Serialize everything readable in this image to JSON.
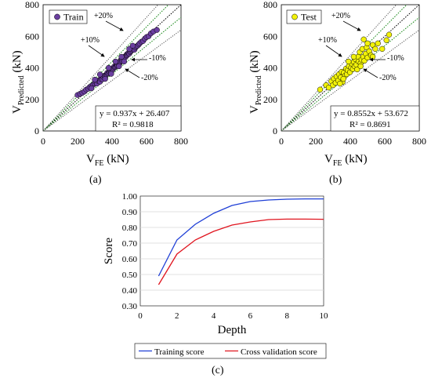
{
  "chart_data": [
    {
      "type": "scatter",
      "panel_label": "(a)",
      "xlabel_main": "V",
      "xlabel_sub": "FE",
      "xlabel_unit": " (kN)",
      "ylabel_main": "V",
      "ylabel_sub": "Predicted",
      "ylabel_unit": " (kN)",
      "xlim": [
        0,
        800
      ],
      "ylim": [
        0,
        800
      ],
      "xticks": [
        "0",
        "200",
        "400",
        "600",
        "800"
      ],
      "yticks": [
        "0",
        "200",
        "400",
        "600",
        "800"
      ],
      "legend": "Train",
      "marker_color": "#6b3fa0",
      "equation": "y = 0.937x + 26.407",
      "r2": "R² = 0.9818",
      "bands": [
        "+20%",
        "+10%",
        "-10%",
        "-20%"
      ],
      "series": [
        {
          "name": "Train",
          "points": [
            [
              200,
              228
            ],
            [
              215,
              235
            ],
            [
              228,
              242
            ],
            [
              240,
              250
            ],
            [
              250,
              262
            ],
            [
              262,
              268
            ],
            [
              270,
              278
            ],
            [
              280,
              285
            ],
            [
              290,
              292
            ],
            [
              298,
              302
            ],
            [
              305,
              310
            ],
            [
              312,
              300
            ],
            [
              318,
              318
            ],
            [
              325,
              322
            ],
            [
              330,
              312
            ],
            [
              335,
              330
            ],
            [
              340,
              338
            ],
            [
              345,
              328
            ],
            [
              350,
              342
            ],
            [
              355,
              350
            ],
            [
              360,
              345
            ],
            [
              365,
              355
            ],
            [
              370,
              360
            ],
            [
              372,
              368
            ],
            [
              378,
              365
            ],
            [
              382,
              372
            ],
            [
              385,
              378
            ],
            [
              390,
              382
            ],
            [
              395,
              375
            ],
            [
              398,
              388
            ],
            [
              400,
              395
            ],
            [
              405,
              392
            ],
            [
              410,
              400
            ],
            [
              412,
              408
            ],
            [
              418,
              405
            ],
            [
              422,
              410
            ],
            [
              425,
              418
            ],
            [
              428,
              422
            ],
            [
              432,
              415
            ],
            [
              435,
              428
            ],
            [
              438,
              432
            ],
            [
              442,
              425
            ],
            [
              445,
              436
            ],
            [
              448,
              440
            ],
            [
              450,
              448
            ],
            [
              455,
              452
            ],
            [
              458,
              445
            ],
            [
              460,
              455
            ],
            [
              465,
              462
            ],
            [
              468,
              458
            ],
            [
              470,
              465
            ],
            [
              475,
              472
            ],
            [
              478,
              468
            ],
            [
              482,
              478
            ],
            [
              485,
              485
            ],
            [
              488,
              480
            ],
            [
              492,
              488
            ],
            [
              495,
              495
            ],
            [
              500,
              490
            ],
            [
              505,
              500
            ],
            [
              510,
              505
            ],
            [
              515,
              512
            ],
            [
              520,
              518
            ],
            [
              525,
              522
            ],
            [
              530,
              515
            ],
            [
              535,
              528
            ],
            [
              540,
              535
            ],
            [
              548,
              540
            ],
            [
              555,
              548
            ],
            [
              560,
              555
            ],
            [
              570,
              565
            ],
            [
              580,
              570
            ],
            [
              590,
              585
            ],
            [
              600,
              595
            ],
            [
              612,
              600
            ],
            [
              625,
              618
            ],
            [
              640,
              630
            ],
            [
              660,
              640
            ],
            [
              330,
              358
            ],
            [
              360,
              330
            ],
            [
              420,
              440
            ],
            [
              440,
              410
            ],
            [
              470,
              440
            ],
            [
              500,
              520
            ],
            [
              380,
              400
            ],
            [
              300,
              325
            ],
            [
              280,
              270
            ],
            [
              520,
              540
            ],
            [
              455,
              470
            ],
            [
              395,
              362
            ]
          ]
        }
      ]
    },
    {
      "type": "scatter",
      "panel_label": "(b)",
      "xlabel_main": "V",
      "xlabel_sub": "FE",
      "xlabel_unit": " (kN)",
      "ylabel_main": "V",
      "ylabel_sub": "Predicted",
      "ylabel_unit": " (kN)",
      "xlim": [
        0,
        800
      ],
      "ylim": [
        0,
        800
      ],
      "xticks": [
        "0",
        "200",
        "400",
        "600",
        "800"
      ],
      "yticks": [
        "0",
        "200",
        "400",
        "600",
        "800"
      ],
      "legend": "Test",
      "marker_color": "#f2f20a",
      "equation": "y = 0.8552x + 53.672",
      "r2": "R² = 0.8691",
      "bands": [
        "+20%",
        "+10%",
        "-10%",
        "-20%"
      ],
      "series": [
        {
          "name": "Test",
          "points": [
            [
              225,
              262
            ],
            [
              260,
              290
            ],
            [
              275,
              275
            ],
            [
              290,
              315
            ],
            [
              300,
              290
            ],
            [
              305,
              332
            ],
            [
              315,
              305
            ],
            [
              320,
              345
            ],
            [
              330,
              320
            ],
            [
              335,
              360
            ],
            [
              345,
              340
            ],
            [
              350,
              375
            ],
            [
              355,
              310
            ],
            [
              362,
              368
            ],
            [
              370,
              350
            ],
            [
              375,
              395
            ],
            [
              380,
              360
            ],
            [
              385,
              385
            ],
            [
              392,
              410
            ],
            [
              398,
              372
            ],
            [
              405,
              400
            ],
            [
              410,
              425
            ],
            [
              415,
              392
            ],
            [
              420,
              438
            ],
            [
              425,
              410
            ],
            [
              430,
              455
            ],
            [
              435,
              420
            ],
            [
              440,
              390
            ],
            [
              445,
              470
            ],
            [
              448,
              440
            ],
            [
              455,
              500
            ],
            [
              460,
              430
            ],
            [
              465,
              452
            ],
            [
              470,
              520
            ],
            [
              475,
              470
            ],
            [
              478,
              580
            ],
            [
              482,
              445
            ],
            [
              490,
              490
            ],
            [
              495,
              530
            ],
            [
              500,
              465
            ],
            [
              510,
              505
            ],
            [
              520,
              480
            ],
            [
              530,
              545
            ],
            [
              545,
              520
            ],
            [
              560,
              555
            ],
            [
              585,
              520
            ],
            [
              610,
              575
            ],
            [
              625,
              610
            ],
            [
              390,
              440
            ],
            [
              360,
              330
            ],
            [
              340,
              300
            ],
            [
              420,
              470
            ],
            [
              460,
              410
            ],
            [
              500,
              555
            ],
            [
              530,
              470
            ]
          ]
        }
      ]
    },
    {
      "type": "line",
      "panel_label": "(c)",
      "xlabel": "Depth",
      "ylabel": "Score",
      "xlim": [
        0,
        10
      ],
      "ylim": [
        0.3,
        1.0
      ],
      "xticks": [
        "0",
        "2",
        "4",
        "6",
        "8",
        "10"
      ],
      "yticks": [
        "0.30",
        "0.40",
        "0.50",
        "0.60",
        "0.70",
        "0.80",
        "0.90",
        "1.00"
      ],
      "x": [
        1,
        2,
        3,
        4,
        5,
        6,
        7,
        8,
        9,
        10
      ],
      "series": [
        {
          "name": "Training score",
          "color": "#1f3fd6",
          "values": [
            0.49,
            0.72,
            0.82,
            0.89,
            0.94,
            0.965,
            0.975,
            0.98,
            0.982,
            0.982
          ]
        },
        {
          "name": "Cross validation score",
          "color": "#e0141e",
          "values": [
            0.435,
            0.63,
            0.72,
            0.775,
            0.815,
            0.835,
            0.85,
            0.853,
            0.853,
            0.852
          ]
        }
      ]
    }
  ]
}
